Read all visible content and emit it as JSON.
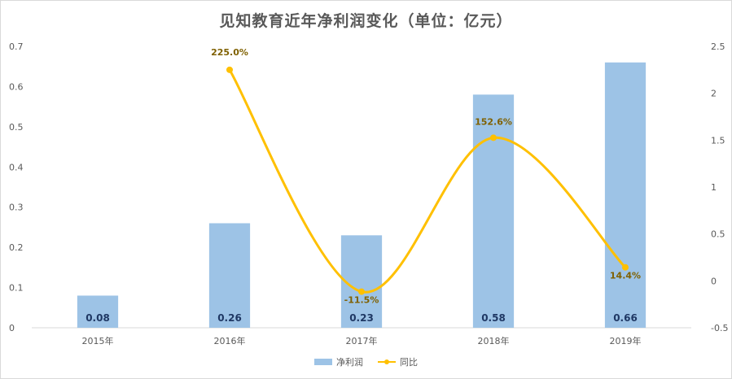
{
  "chart_data": {
    "type": "bar+line",
    "title": "见知教育近年净利润变化（单位：亿元）",
    "categories": [
      "2015年",
      "2016年",
      "2017年",
      "2018年",
      "2019年"
    ],
    "series": [
      {
        "name": "净利润",
        "type": "bar",
        "axis": "left",
        "color": "#9dc3e6",
        "values": [
          0.08,
          0.26,
          0.23,
          0.58,
          0.66
        ],
        "labels": [
          "0.08",
          "0.26",
          "0.23",
          "0.58",
          "0.66"
        ]
      },
      {
        "name": "同比",
        "type": "line",
        "axis": "right",
        "color": "#ffc000",
        "values": [
          null,
          2.25,
          -0.115,
          1.526,
          0.144
        ],
        "labels": [
          null,
          "225.0%",
          "-11.5%",
          "152.6%",
          "14.4%"
        ]
      }
    ],
    "y_left": {
      "min": 0,
      "max": 0.7,
      "ticks": [
        "0",
        "0.1",
        "0.2",
        "0.3",
        "0.4",
        "0.5",
        "0.6",
        "0.7"
      ]
    },
    "y_right": {
      "min": -0.5,
      "max": 2.5,
      "ticks": [
        "-0.5",
        "0",
        "0.5",
        "1",
        "1.5",
        "2",
        "2.5"
      ]
    },
    "grid": false,
    "legend_position": "bottom"
  }
}
